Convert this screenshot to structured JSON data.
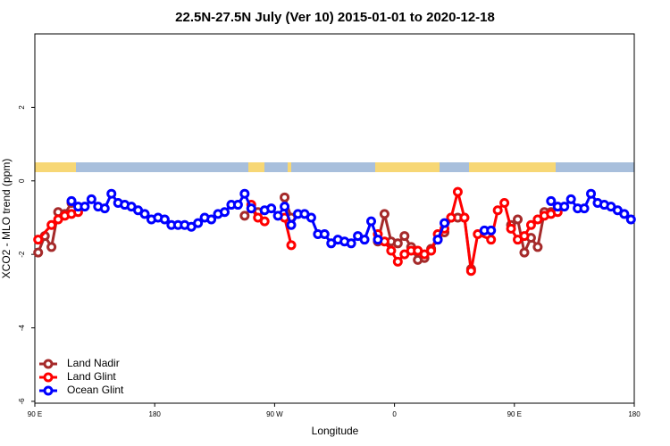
{
  "chart_data": {
    "type": "line",
    "title": "22.5N-27.5N July (Ver 10)   2015-01-01 to 2020-12-18",
    "x_label": "Longitude",
    "y_label": "XCO2 - MLO trend (ppm)",
    "xlim": [
      90,
      540
    ],
    "xticks": [
      {
        "value": 90,
        "label": "90 E"
      },
      180,
      {
        "value": 270,
        "label": "90 W"
      },
      {
        "value": 360,
        "label": "0"
      },
      {
        "value": 450,
        "label": "90 E"
      },
      {
        "value": 540,
        "label": "180"
      }
    ],
    "ylim": [
      -6.05,
      4
    ],
    "yticks": [
      -6,
      -4,
      -2,
      0,
      2
    ],
    "legend": "bottomleft",
    "series": [
      {
        "name": "Land Nadir",
        "color": "#a52a2a",
        "x": [
          92.5,
          97.5,
          102.5,
          107.5,
          112.5,
          117.5,
          122.5,
          247.5,
          252.5,
          257.5,
          262.5,
          277.5,
          282.5,
          287.5,
          347.5,
          352.5,
          357.5,
          362.5,
          367.5,
          372.5,
          377.5,
          382.5,
          387.5,
          392.5,
          397.5,
          402.5,
          407.5,
          412.5,
          417.5,
          422.5,
          447.5,
          452.5,
          457.5,
          462.5,
          467.5,
          472.5,
          477.5
        ],
        "values": [
          -1.95,
          -1.5,
          -1.8,
          -0.85,
          -0.9,
          -0.6,
          null,
          -0.95,
          -0.75,
          -0.85,
          null,
          -0.45,
          -1.0,
          null,
          -1.65,
          -0.9,
          -1.65,
          -1.7,
          -1.5,
          -1.8,
          -2.15,
          -2.1,
          -1.85,
          -1.6,
          -1.4,
          -1.0,
          -1.0,
          -1.0,
          -2.4,
          null,
          -1.2,
          -1.05,
          -1.95,
          -1.55,
          -1.8,
          -0.85,
          -0.85
        ]
      },
      {
        "name": "Land Glint",
        "color": "#ff0000",
        "x": [
          92.5,
          102.5,
          107.5,
          112.5,
          117.5,
          122.5,
          127.5,
          252.5,
          257.5,
          262.5,
          267.5,
          277.5,
          282.5,
          287.5,
          347.5,
          352.5,
          357.5,
          362.5,
          367.5,
          372.5,
          377.5,
          382.5,
          387.5,
          392.5,
          397.5,
          402.5,
          407.5,
          412.5,
          417.5,
          422.5,
          432.5,
          437.5,
          442.5,
          447.5,
          452.5,
          457.5,
          462.5,
          467.5,
          472.5,
          477.5,
          482.5
        ],
        "values": [
          -1.6,
          -1.2,
          -1.05,
          -0.95,
          -0.9,
          -0.85,
          null,
          -0.65,
          -1.0,
          -1.1,
          null,
          -1.0,
          -1.75,
          null,
          -1.45,
          -1.65,
          -1.9,
          -2.2,
          -2.0,
          -1.9,
          -1.9,
          -2.0,
          -1.9,
          -1.45,
          -1.3,
          -1.0,
          -0.3,
          -1.0,
          -2.45,
          -1.45,
          -1.6,
          -0.8,
          -0.6,
          -1.3,
          -1.6,
          -1.5,
          -1.2,
          -1.05,
          -0.95,
          -0.9,
          -0.85
        ]
      },
      {
        "name": "Ocean Glint",
        "color": "#0000ff",
        "x": [
          117.5,
          122.5,
          127.5,
          132.5,
          137.5,
          142.5,
          147.5,
          152.5,
          157.5,
          162.5,
          167.5,
          172.5,
          177.5,
          182.5,
          187.5,
          192.5,
          197.5,
          202.5,
          207.5,
          212.5,
          217.5,
          222.5,
          227.5,
          232.5,
          237.5,
          242.5,
          247.5,
          252.5,
          257.5,
          262.5,
          267.5,
          272.5,
          277.5,
          282.5,
          287.5,
          292.5,
          297.5,
          302.5,
          307.5,
          312.5,
          317.5,
          322.5,
          327.5,
          332.5,
          337.5,
          342.5,
          347.5,
          352.5,
          392.5,
          397.5,
          402.5,
          427.5,
          432.5,
          437.5,
          477.5,
          482.5,
          487.5,
          492.5,
          497.5,
          502.5,
          507.5,
          512.5,
          517.5,
          522.5,
          527.5,
          532.5,
          537.5
        ],
        "values": [
          -0.55,
          -0.7,
          -0.7,
          -0.5,
          -0.7,
          -0.75,
          -0.35,
          -0.6,
          -0.65,
          -0.7,
          -0.8,
          -0.9,
          -1.05,
          -1.0,
          -1.05,
          -1.2,
          -1.2,
          -1.2,
          -1.25,
          -1.15,
          -1.0,
          -1.05,
          -0.9,
          -0.85,
          -0.65,
          -0.65,
          -0.35,
          -0.75,
          null,
          -0.8,
          -0.75,
          -0.95,
          -0.7,
          -1.2,
          -0.9,
          -0.9,
          -1.0,
          -1.45,
          -1.45,
          -1.7,
          -1.6,
          -1.65,
          -1.7,
          -1.5,
          -1.6,
          -1.1,
          -1.6,
          null,
          -1.6,
          -1.15,
          null,
          -1.35,
          -1.35,
          null,
          -0.55,
          -0.7,
          -0.7,
          -0.5,
          -0.75,
          -0.75,
          -0.35,
          -0.6,
          -0.65,
          -0.7,
          -0.8,
          -0.9,
          -1.05
        ]
      }
    ]
  }
}
